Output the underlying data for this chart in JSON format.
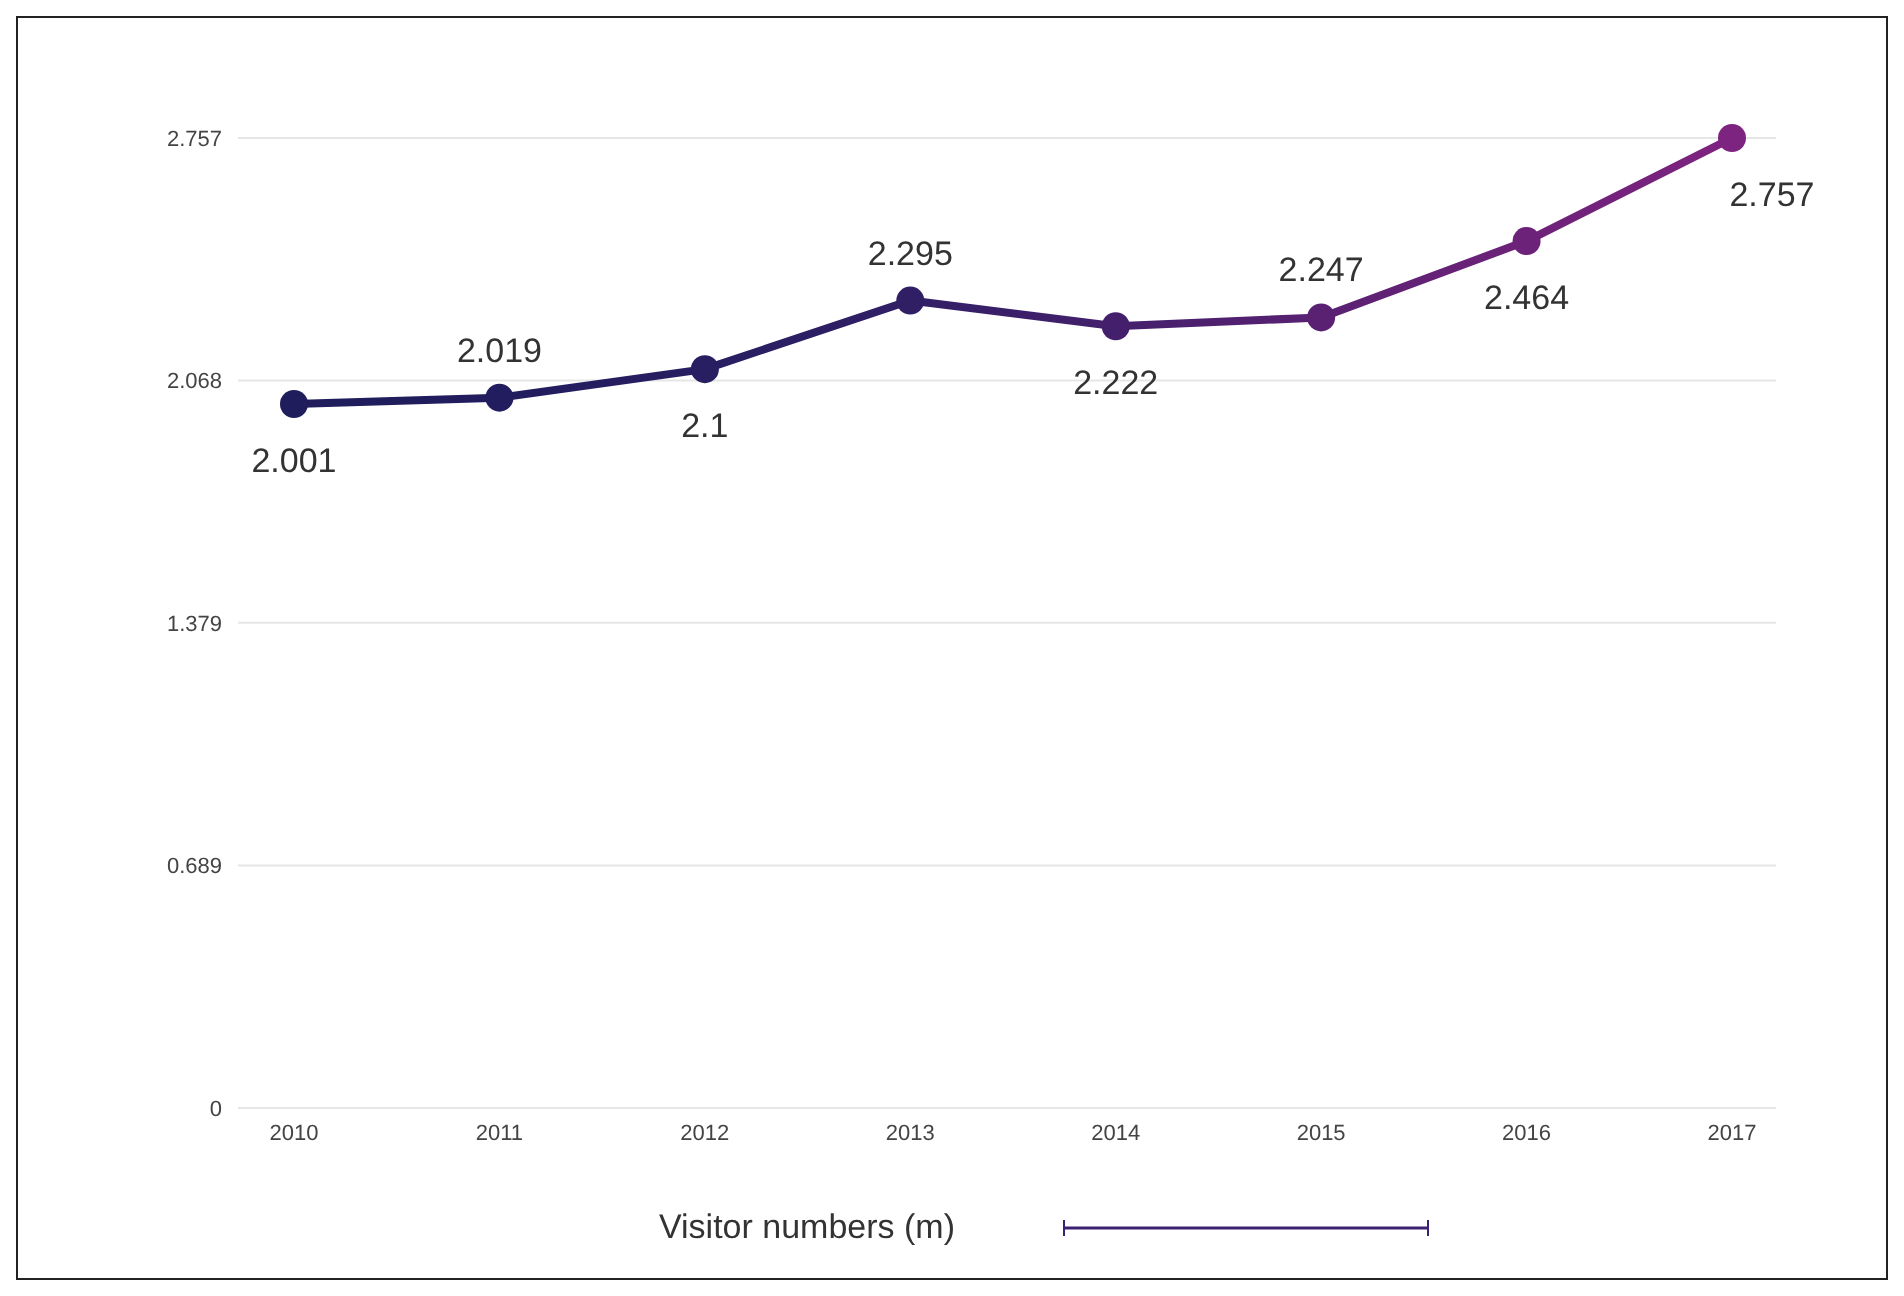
{
  "chart_data": {
    "type": "line",
    "categories": [
      "2010",
      "2011",
      "2012",
      "2013",
      "2014",
      "2015",
      "2016",
      "2017"
    ],
    "series": [
      {
        "name": "Visitor numbers (m)",
        "color": "#3a2270",
        "colors": [
          "#1f1d5c",
          "#221d5e",
          "#281e62",
          "#311f66",
          "#44206c",
          "#5a2173",
          "#6d2279",
          "#7d2380"
        ],
        "values": [
          2.001,
          2.019,
          2.1,
          2.295,
          2.222,
          2.247,
          2.464,
          2.757
        ]
      }
    ],
    "ylim": [
      0,
      2.757
    ],
    "yticks": [
      0,
      0.689,
      1.379,
      2.068,
      2.757
    ],
    "grid": "y",
    "legend": "bottom",
    "marker": "circle",
    "line_style": "solid",
    "data_labels": true
  }
}
